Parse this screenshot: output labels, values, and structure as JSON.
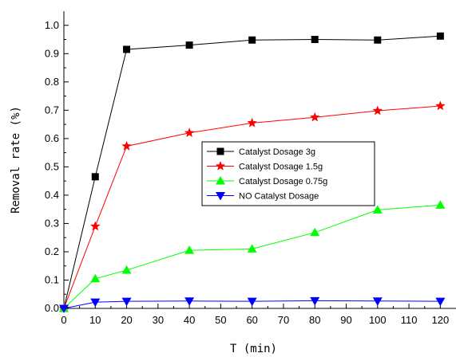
{
  "chart_data": {
    "type": "line",
    "title": "",
    "xlabel": "T (min)",
    "ylabel": "Removal rate (%)",
    "x": [
      0,
      10,
      20,
      40,
      60,
      80,
      100,
      120
    ],
    "xlim": [
      0,
      125
    ],
    "ylim": [
      0,
      1.05
    ],
    "xticks": [
      0,
      10,
      20,
      30,
      40,
      50,
      60,
      70,
      80,
      90,
      100,
      110,
      120
    ],
    "yticks": [
      0.0,
      0.1,
      0.2,
      0.3,
      0.4,
      0.5,
      0.6,
      0.7,
      0.8,
      0.9,
      1.0
    ],
    "grid": false,
    "legend_position": "center-right",
    "series": [
      {
        "name": "Catalyst Dosage 3g",
        "color": "#000000",
        "marker": "square",
        "values": [
          0.0,
          0.465,
          0.915,
          0.93,
          0.948,
          0.95,
          0.948,
          0.962
        ]
      },
      {
        "name": "Catalyst Dosage 1.5g",
        "color": "#ff0000",
        "marker": "star",
        "values": [
          0.0,
          0.29,
          0.573,
          0.62,
          0.655,
          0.675,
          0.698,
          0.715
        ]
      },
      {
        "name": "Catalyst Dosage 0.75g",
        "color": "#00ff00",
        "marker": "triangle-up",
        "values": [
          0.0,
          0.105,
          0.135,
          0.205,
          0.21,
          0.268,
          0.348,
          0.365
        ]
      },
      {
        "name": "NO Catalyst Dosage",
        "color": "#0000ff",
        "marker": "triangle-down",
        "values": [
          0.0,
          0.022,
          0.025,
          0.026,
          0.025,
          0.027,
          0.026,
          0.025
        ]
      }
    ]
  }
}
